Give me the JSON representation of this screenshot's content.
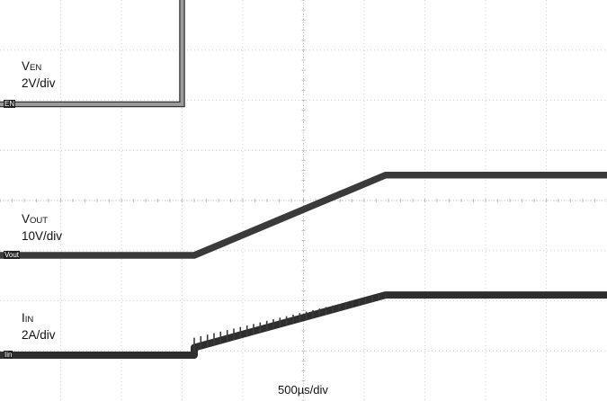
{
  "chart_data": {
    "type": "line",
    "title": "",
    "timebase": "500µs/div",
    "x_unit": "div",
    "xlim": [
      0,
      10
    ],
    "grid": true,
    "series": [
      {
        "name": "VEN",
        "name_main": "V",
        "name_sub": "EN",
        "scale": "2V/div",
        "marker": "EN",
        "color": "#9a9a9a",
        "points": [
          [
            0,
            0
          ],
          [
            3.0,
            0
          ],
          [
            3.0,
            2.85
          ],
          [
            10,
            2.85
          ]
        ]
      },
      {
        "name": "VOUT",
        "name_main": "V",
        "name_sub": "OUT",
        "scale": "10V/div",
        "marker": "Vout",
        "color": "#3a3a3a",
        "points": [
          [
            0,
            0
          ],
          [
            3.2,
            0
          ],
          [
            6.35,
            1.6
          ],
          [
            10,
            1.6
          ]
        ]
      },
      {
        "name": "IIN",
        "name_main": "I",
        "name_sub": "IN",
        "scale": "2A/div",
        "marker": "Iin",
        "color": "#2e2e2e",
        "points": [
          [
            0,
            0
          ],
          [
            3.2,
            0
          ],
          [
            3.2,
            0.15
          ],
          [
            6.35,
            1.2
          ],
          [
            10,
            1.2
          ]
        ]
      }
    ]
  }
}
